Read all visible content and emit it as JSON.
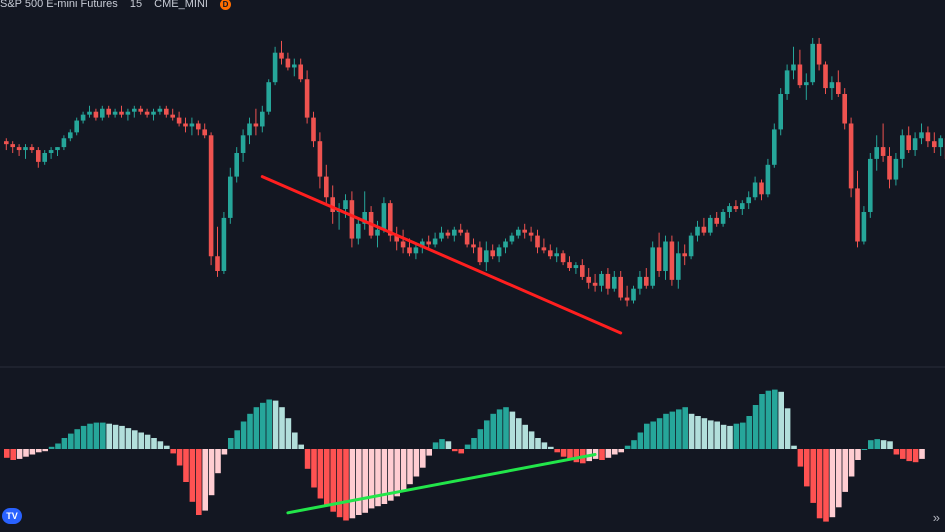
{
  "header": {
    "symbol": "S&P 500 E-mini Futures",
    "interval": "15",
    "exchange": "CME_MINI",
    "badge": "D"
  },
  "footer": {
    "logo_text": "TV",
    "scroll_label": "»"
  },
  "colors": {
    "background": "#131722",
    "up": "#26a69a",
    "down": "#ef5350",
    "hist_up_strong": "#26a69a",
    "hist_up_weak": "#b2dfdb",
    "hist_down_strong": "#ff5252",
    "hist_down_weak": "#ffcdd2",
    "trend_price": "#ff1f1f",
    "trend_hist": "#22e64a"
  },
  "chart_data": [
    {
      "type": "candlestick",
      "series": [
        {
          "name": "",
          "ohlc": [
            [
              64,
              65,
              61,
              63
            ],
            [
              63,
              64,
              60,
              62
            ],
            [
              62,
              63,
              59,
              61
            ],
            [
              61,
              63,
              58,
              62
            ],
            [
              62,
              63,
              60,
              61
            ],
            [
              61,
              62,
              55,
              57
            ],
            [
              57,
              61,
              56,
              60
            ],
            [
              60,
              62,
              58,
              61
            ],
            [
              61,
              62,
              59,
              62
            ],
            [
              62,
              66,
              61,
              65
            ],
            [
              65,
              68,
              64,
              67
            ],
            [
              67,
              72,
              66,
              71
            ],
            [
              71,
              74,
              70,
              73
            ],
            [
              73,
              76,
              72,
              74
            ],
            [
              74,
              75,
              71,
              72
            ],
            [
              72,
              76,
              71,
              75
            ],
            [
              75,
              76,
              72,
              73
            ],
            [
              73,
              75,
              72,
              74
            ],
            [
              74,
              76,
              72,
              73
            ],
            [
              73,
              75,
              71,
              74
            ],
            [
              74,
              76,
              72,
              75
            ],
            [
              75,
              76,
              73,
              74
            ],
            [
              74,
              75,
              72,
              73
            ],
            [
              73,
              75,
              71,
              74
            ],
            [
              74,
              76,
              73,
              75
            ],
            [
              75,
              76,
              72,
              73
            ],
            [
              73,
              75,
              71,
              72
            ],
            [
              72,
              74,
              69,
              70
            ],
            [
              70,
              72,
              67,
              69
            ],
            [
              69,
              72,
              66,
              70
            ],
            [
              70,
              71,
              66,
              68
            ],
            [
              68,
              70,
              65,
              66
            ],
            [
              66,
              67,
              22,
              25
            ],
            [
              25,
              35,
              18,
              20
            ],
            [
              20,
              40,
              19,
              38
            ],
            [
              38,
              55,
              36,
              52
            ],
            [
              52,
              62,
              50,
              60
            ],
            [
              60,
              68,
              57,
              66
            ],
            [
              66,
              72,
              63,
              70
            ],
            [
              70,
              75,
              66,
              69
            ],
            [
              69,
              76,
              67,
              74
            ],
            [
              74,
              85,
              73,
              84
            ],
            [
              84,
              96,
              83,
              94
            ],
            [
              94,
              98,
              90,
              92
            ],
            [
              92,
              94,
              88,
              89
            ],
            [
              89,
              92,
              86,
              90
            ],
            [
              90,
              92,
              84,
              85
            ],
            [
              85,
              88,
              70,
              72
            ],
            [
              72,
              74,
              62,
              64
            ],
            [
              64,
              67,
              48,
              52
            ],
            [
              52,
              56,
              43,
              45
            ],
            [
              45,
              49,
              36,
              40
            ],
            [
              40,
              43,
              34,
              41
            ],
            [
              41,
              46,
              38,
              44
            ],
            [
              44,
              47,
              28,
              31
            ],
            [
              31,
              38,
              29,
              36
            ],
            [
              36,
              47,
              34,
              40
            ],
            [
              40,
              42,
              31,
              32
            ],
            [
              32,
              37,
              28,
              34
            ],
            [
              34,
              45,
              33,
              43
            ],
            [
              43,
              44,
              30,
              32
            ],
            [
              32,
              35,
              27,
              30
            ],
            [
              30,
              34,
              26,
              28
            ],
            [
              28,
              31,
              25,
              26
            ],
            [
              26,
              29,
              24,
              28
            ],
            [
              28,
              31,
              26,
              30
            ],
            [
              30,
              32,
              27,
              29
            ],
            [
              29,
              33,
              28,
              31
            ],
            [
              31,
              35,
              30,
              33
            ],
            [
              33,
              34,
              31,
              32
            ],
            [
              32,
              35,
              30,
              34
            ],
            [
              34,
              36,
              32,
              33
            ],
            [
              33,
              34,
              28,
              29
            ],
            [
              29,
              31,
              26,
              28
            ],
            [
              28,
              30,
              22,
              23
            ],
            [
              23,
              30,
              20,
              27
            ],
            [
              27,
              29,
              24,
              25
            ],
            [
              25,
              29,
              23,
              28
            ],
            [
              28,
              31,
              26,
              30
            ],
            [
              30,
              33,
              29,
              32
            ],
            [
              32,
              35,
              31,
              34
            ],
            [
              34,
              36,
              31,
              33
            ],
            [
              33,
              35,
              30,
              32
            ],
            [
              32,
              34,
              26,
              28
            ],
            [
              28,
              31,
              26,
              27
            ],
            [
              27,
              29,
              24,
              25
            ],
            [
              25,
              28,
              23,
              26
            ],
            [
              26,
              27,
              22,
              23
            ],
            [
              23,
              25,
              20,
              21
            ],
            [
              21,
              23,
              19,
              22
            ],
            [
              22,
              24,
              17,
              18
            ],
            [
              18,
              21,
              14,
              16
            ],
            [
              16,
              19,
              13,
              15
            ],
            [
              15,
              20,
              13,
              19
            ],
            [
              19,
              21,
              12,
              14
            ],
            [
              14,
              20,
              13,
              18
            ],
            [
              18,
              20,
              10,
              11
            ],
            [
              11,
              15,
              8,
              10
            ],
            [
              10,
              15,
              9,
              14
            ],
            [
              14,
              20,
              12,
              18
            ],
            [
              18,
              21,
              14,
              15
            ],
            [
              15,
              30,
              14,
              28
            ],
            [
              28,
              33,
              18,
              20
            ],
            [
              20,
              32,
              17,
              30
            ],
            [
              30,
              32,
              15,
              17
            ],
            [
              17,
              30,
              14,
              26
            ],
            [
              26,
              29,
              22,
              25
            ],
            [
              25,
              33,
              24,
              32
            ],
            [
              32,
              37,
              30,
              35
            ],
            [
              35,
              38,
              32,
              33
            ],
            [
              33,
              39,
              32,
              38
            ],
            [
              38,
              40,
              35,
              36
            ],
            [
              36,
              41,
              35,
              40
            ],
            [
              40,
              43,
              38,
              42
            ],
            [
              42,
              44,
              40,
              41
            ],
            [
              41,
              44,
              39,
              43
            ],
            [
              43,
              47,
              41,
              45
            ],
            [
              45,
              52,
              44,
              50
            ],
            [
              50,
              51,
              44,
              46
            ],
            [
              46,
              58,
              45,
              56
            ],
            [
              56,
              70,
              55,
              68
            ],
            [
              68,
              82,
              66,
              80
            ],
            [
              80,
              90,
              78,
              88
            ],
            [
              88,
              96,
              85,
              90
            ],
            [
              90,
              95,
              82,
              83
            ],
            [
              83,
              87,
              78,
              84
            ],
            [
              84,
              99,
              83,
              97
            ],
            [
              97,
              99,
              88,
              90
            ],
            [
              90,
              91,
              80,
              82
            ],
            [
              82,
              86,
              78,
              84
            ],
            [
              84,
              88,
              79,
              80
            ],
            [
              80,
              82,
              68,
              70
            ],
            [
              70,
              72,
              45,
              48
            ],
            [
              48,
              54,
              28,
              30
            ],
            [
              30,
              42,
              29,
              40
            ],
            [
              40,
              60,
              38,
              58
            ],
            [
              58,
              66,
              54,
              62
            ],
            [
              62,
              70,
              57,
              59
            ],
            [
              59,
              62,
              48,
              51
            ],
            [
              51,
              60,
              49,
              58
            ],
            [
              58,
              68,
              55,
              66
            ],
            [
              66,
              69,
              60,
              61
            ],
            [
              61,
              67,
              59,
              65
            ],
            [
              65,
              70,
              63,
              67
            ],
            [
              67,
              69,
              62,
              64
            ],
            [
              64,
              67,
              60,
              62
            ],
            [
              62,
              66,
              59,
              65
            ],
            [
              65,
              67,
              56,
              58
            ],
            [
              58,
              62,
              55,
              60
            ],
            [
              60,
              64,
              56,
              57
            ]
          ]
        }
      ]
    },
    {
      "type": "bar",
      "series": [
        {
          "name": "",
          "values": [
            -0.8,
            -1.0,
            -0.9,
            -0.7,
            -0.5,
            -0.3,
            -0.2,
            0.2,
            0.5,
            1.0,
            1.4,
            1.8,
            2.1,
            2.3,
            2.4,
            2.4,
            2.3,
            2.2,
            2.1,
            1.9,
            1.7,
            1.5,
            1.3,
            1.0,
            0.7,
            0.3,
            -0.4,
            -1.5,
            -3.0,
            -4.8,
            -6.0,
            -5.6,
            -4.2,
            -2.2,
            -0.5,
            1.0,
            1.7,
            2.5,
            3.2,
            3.8,
            4.2,
            4.5,
            4.4,
            3.8,
            2.8,
            1.5,
            0.4,
            -1.8,
            -3.5,
            -4.5,
            -5.2,
            -5.7,
            -6.2,
            -6.5,
            -6.3,
            -6.0,
            -5.8,
            -5.4,
            -5.2,
            -5.0,
            -4.7,
            -4.3,
            -3.8,
            -3.2,
            -2.5,
            -1.7,
            -0.6,
            0.6,
            0.9,
            0.7,
            -0.2,
            -0.4,
            0.4,
            1.0,
            1.8,
            2.6,
            3.2,
            3.6,
            3.8,
            3.4,
            2.8,
            2.2,
            1.6,
            1.0,
            0.6,
            0.2,
            -0.3,
            -0.7,
            -1.0,
            -1.2,
            -1.3,
            -1.1,
            -0.9,
            -1.0,
            -0.8,
            -0.5,
            -0.3,
            0.3,
            0.8,
            1.5,
            2.3,
            2.5,
            2.8,
            3.2,
            3.4,
            3.6,
            3.8,
            3.2,
            3.0,
            2.8,
            2.6,
            2.5,
            2.2,
            2.1,
            2.3,
            2.4,
            3.0,
            4.0,
            5.0,
            5.3,
            5.4,
            5.2,
            3.7,
            0.3,
            -1.6,
            -3.4,
            -4.9,
            -6.3,
            -6.6,
            -6.2,
            -5.3,
            -3.9,
            -2.5,
            -1.0,
            0.0,
            0.8,
            0.9,
            0.8,
            0.7,
            -0.5,
            -0.9,
            -1.1,
            -1.2,
            -0.9
          ]
        }
      ]
    }
  ]
}
